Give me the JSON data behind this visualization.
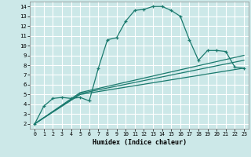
{
  "xlabel": "Humidex (Indice chaleur)",
  "bg_color": "#cce8e8",
  "grid_color": "#ffffff",
  "line_color": "#1a7a6e",
  "xlim": [
    -0.5,
    23.5
  ],
  "ylim": [
    1.5,
    14.5
  ],
  "xticks": [
    0,
    1,
    2,
    3,
    4,
    5,
    6,
    7,
    8,
    9,
    10,
    11,
    12,
    13,
    14,
    15,
    16,
    17,
    18,
    19,
    20,
    21,
    22,
    23
  ],
  "yticks": [
    2,
    3,
    4,
    5,
    6,
    7,
    8,
    9,
    10,
    11,
    12,
    13,
    14
  ],
  "curve1_x": [
    0,
    1,
    2,
    3,
    4,
    5,
    6,
    7,
    8,
    9,
    10,
    11,
    12,
    13,
    14,
    15,
    16,
    17,
    18,
    19,
    20,
    21,
    22,
    23
  ],
  "curve1_y": [
    2.0,
    3.8,
    4.6,
    4.7,
    4.6,
    4.7,
    4.35,
    7.7,
    10.6,
    10.8,
    12.5,
    13.6,
    13.7,
    14.0,
    14.0,
    13.6,
    13.0,
    10.6,
    8.5,
    9.5,
    9.5,
    9.4,
    7.8,
    7.7
  ],
  "curve2_x": [
    0,
    5,
    23
  ],
  "curve2_y": [
    2.0,
    5.0,
    7.7
  ],
  "curve3_x": [
    0,
    5,
    23
  ],
  "curve3_y": [
    2.0,
    5.1,
    8.5
  ],
  "curve4_x": [
    0,
    5,
    23
  ],
  "curve4_y": [
    2.0,
    5.2,
    9.0
  ]
}
